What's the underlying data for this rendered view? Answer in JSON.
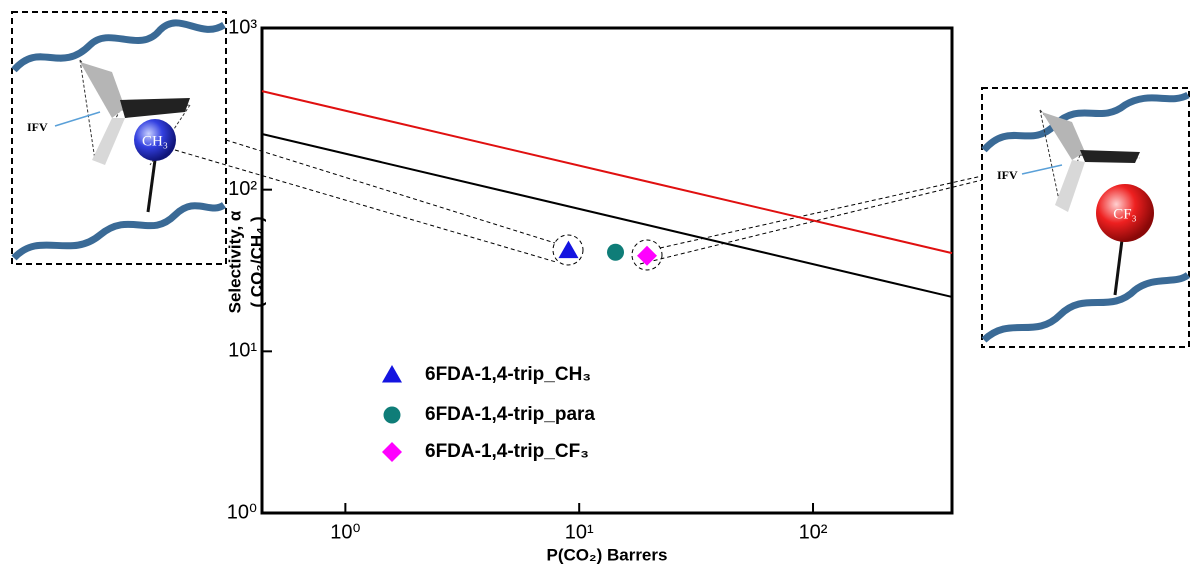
{
  "chart_data": {
    "type": "scatter",
    "x_label": "P(CO₂) Barrers",
    "y_label": [
      "Selectivity, α",
      "( CO₂/CH₄ )"
    ],
    "xlog": true,
    "ylog": true,
    "xlim": [
      0.44,
      393
    ],
    "ylim": [
      1,
      1000
    ],
    "xticks": [
      {
        "value": 1,
        "label": "10⁰"
      },
      {
        "value": 10,
        "label": "10¹"
      },
      {
        "value": 100,
        "label": "10²"
      }
    ],
    "yticks": [
      {
        "value": 1,
        "label": "10⁰"
      },
      {
        "value": 10,
        "label": "10¹"
      },
      {
        "value": 100,
        "label": "10²"
      },
      {
        "value": 1000,
        "label": "10³"
      }
    ],
    "series": [
      {
        "name": "6FDA-1,4-trip_CH₃",
        "color": "#1414e0",
        "marker": "triangle",
        "x": [
          9.0
        ],
        "values": [
          42
        ]
      },
      {
        "name": "6FDA-1,4-trip_para",
        "color": "#0f7d78",
        "marker": "circle",
        "x": [
          14.3
        ],
        "values": [
          41
        ]
      },
      {
        "name": "6FDA-1,4-trip_CF₃",
        "color": "#ff00ff",
        "marker": "diamond",
        "x": [
          19.5
        ],
        "values": [
          39
        ]
      }
    ],
    "lines": [
      {
        "color": "#e01010",
        "x": [
          0.44,
          393
        ],
        "values": [
          407,
          40.5
        ]
      },
      {
        "color": "#000000",
        "x": [
          0.44,
          393
        ],
        "values": [
          221,
          21.7
        ]
      }
    ],
    "insets": [
      {
        "label": "IFV",
        "group": "CH₃"
      },
      {
        "label": "IFV",
        "group": "CF₃"
      }
    ]
  }
}
